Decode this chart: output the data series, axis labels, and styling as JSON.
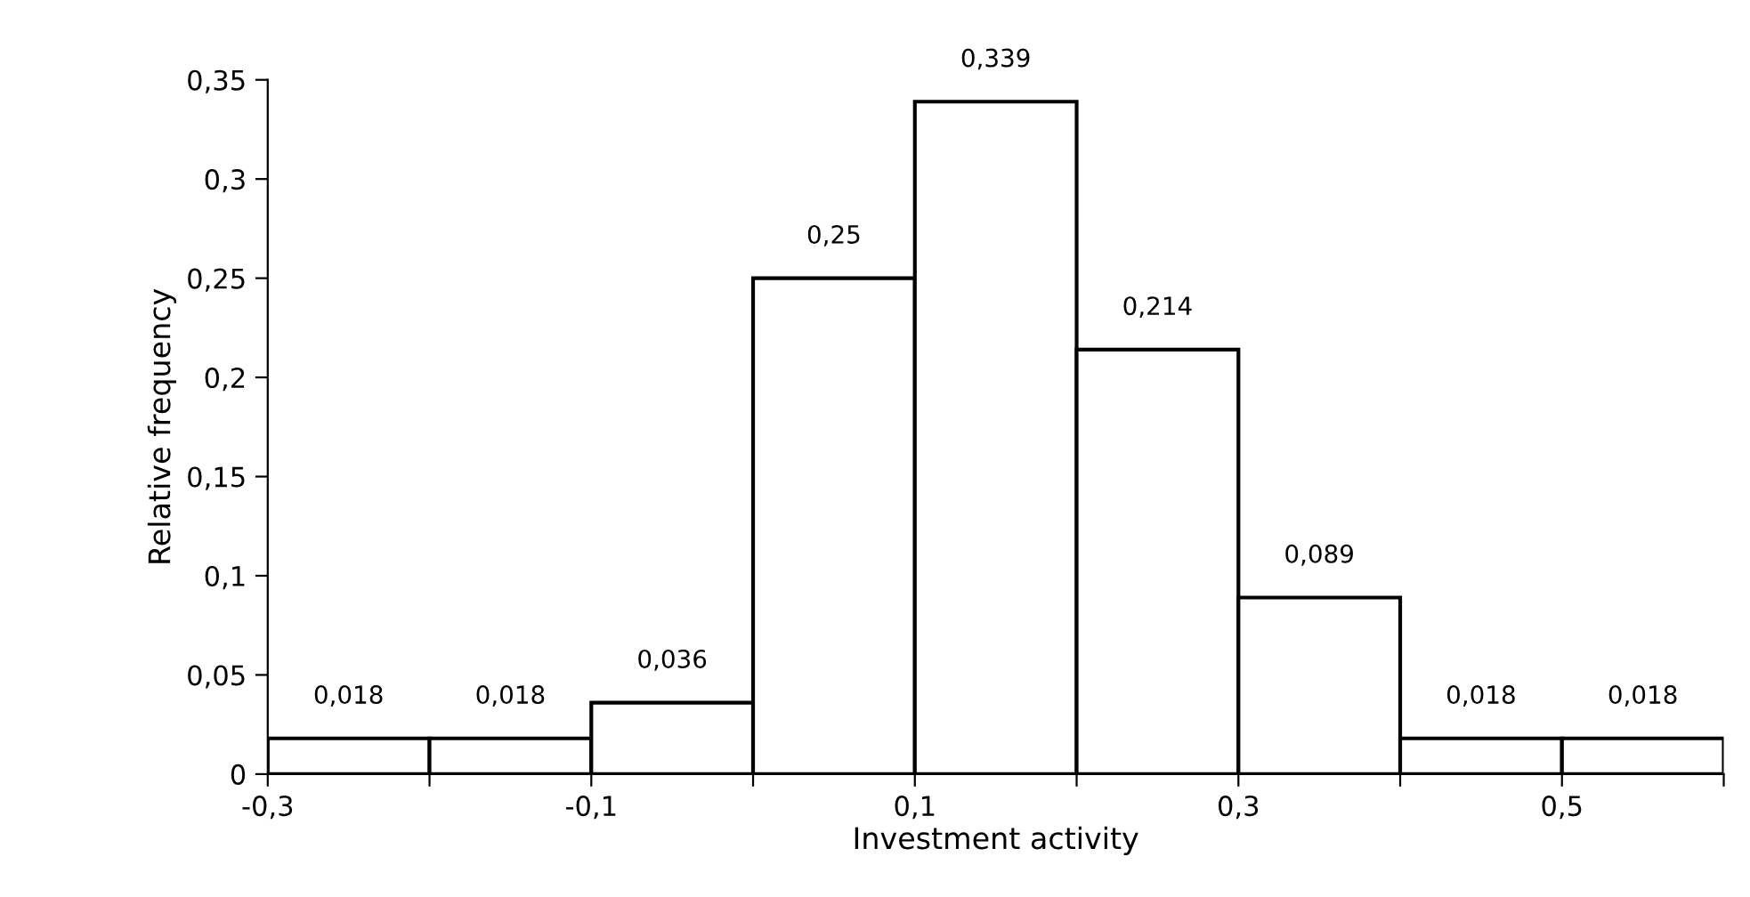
{
  "chart_data": {
    "type": "histogram",
    "xlabel": "Investment activity",
    "ylabel": "Relative frequency",
    "bins": [
      -0.3,
      -0.2,
      -0.1,
      0.0,
      0.1,
      0.2,
      0.3,
      0.4,
      0.5,
      0.6
    ],
    "values": [
      0.018,
      0.018,
      0.036,
      0.25,
      0.339,
      0.214,
      0.089,
      0.018,
      0.018
    ],
    "value_labels": [
      "0,018",
      "0,018",
      "0,036",
      "0,25",
      "0,339",
      "0,214",
      "0,089",
      "0,018",
      "0,018"
    ],
    "color": "#ffffff",
    "xlim": [
      -0.3,
      0.6
    ],
    "xticks": [
      {
        "value": -0.3,
        "label": "-0,3"
      },
      {
        "value": -0.2,
        "label": null
      },
      {
        "value": -0.1,
        "label": "-0,1"
      },
      {
        "value": 0.0,
        "label": null
      },
      {
        "value": 0.1,
        "label": "0,1"
      },
      {
        "value": 0.2,
        "label": null
      },
      {
        "value": 0.3,
        "label": "0,3"
      },
      {
        "value": 0.4,
        "label": null
      },
      {
        "value": 0.5,
        "label": "0,5"
      },
      {
        "value": 0.6,
        "label": null
      }
    ],
    "ylim": [
      0,
      0.35
    ],
    "yticks": [
      0,
      {
        "value": 0.05,
        "label": "0,05"
      },
      {
        "value": 0.1,
        "label": "0,1"
      },
      {
        "value": 0.15,
        "label": "0,15"
      },
      {
        "value": 0.2,
        "label": "0,2"
      },
      {
        "value": 0.25,
        "label": "0,25"
      },
      {
        "value": 0.3,
        "label": "0,3"
      },
      {
        "value": 0.35,
        "label": "0,35"
      }
    ],
    "grid": false,
    "legend": false
  }
}
